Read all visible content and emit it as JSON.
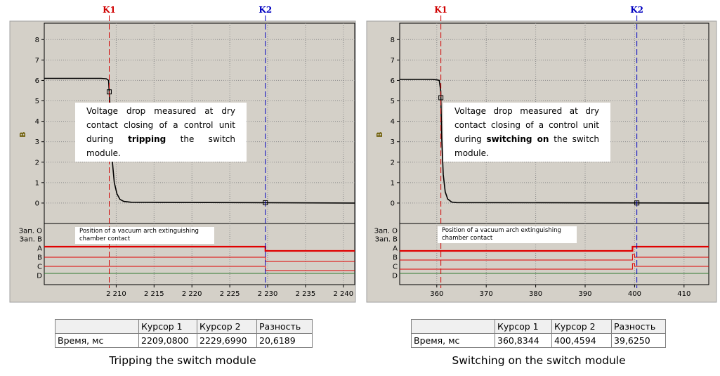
{
  "chart_data": [
    {
      "type": "line",
      "ylabel": "В",
      "xlim": [
        2200.5,
        2241.5
      ],
      "ylim": [
        -1,
        8.8
      ],
      "x_ticks": [
        2210,
        2215,
        2220,
        2225,
        2230,
        2235,
        2240
      ],
      "x_tick_labels": [
        "2 210",
        "2 215",
        "2 220",
        "2 225",
        "2 230",
        "2 235",
        "2 240"
      ],
      "y_ticks": [
        0,
        1,
        2,
        3,
        4,
        5,
        6,
        7,
        8
      ],
      "y_tick_labels": [
        "0",
        "1",
        "2",
        "3",
        "4",
        "5",
        "6",
        "7",
        "8"
      ],
      "series": [
        {
          "color": "#000000",
          "x": [
            2200.5,
            2207.5,
            2208.0,
            2208.7,
            2209.0,
            2209.2,
            2209.45,
            2209.75,
            2210.1,
            2210.5,
            2211.0,
            2212.0,
            2241.5
          ],
          "y": [
            6.1,
            6.1,
            6.1,
            6.08,
            6.0,
            4.6,
            2.2,
            1.0,
            0.45,
            0.18,
            0.08,
            0.04,
            0.0
          ]
        }
      ],
      "cursors": [
        {
          "name": "K1",
          "x": 2209.08,
          "color": "#d00000"
        },
        {
          "name": "K2",
          "x": 2229.7,
          "color": "#0000c0"
        }
      ],
      "digital_labels": [
        "Зап. О",
        "Зап. В",
        "A",
        "B",
        "C",
        "D"
      ],
      "digital_changes_at": 2229.7,
      "annotation": {
        "before": "Voltage drop measured at dry contact closing of a control unit during ",
        "bold": "tripping",
        "after": " the switch module."
      },
      "digital_annotation": "Position of a vacuum arch extinguishing chamber contact",
      "table": {
        "headers": [
          "",
          "Курсор 1",
          "Курсор 2",
          "Разность"
        ],
        "row": [
          "Время, мс",
          "2209,0800",
          "2229,6990",
          "20,6189"
        ]
      },
      "caption": "Tripping the switch module",
      "grid": true
    },
    {
      "type": "line",
      "ylabel": "В",
      "xlim": [
        352.5,
        415.0
      ],
      "ylim": [
        -1,
        8.8
      ],
      "x_ticks": [
        360,
        370,
        380,
        390,
        400,
        410
      ],
      "x_tick_labels": [
        "360",
        "370",
        "380",
        "390",
        "400",
        "410"
      ],
      "y_ticks": [
        0,
        1,
        2,
        3,
        4,
        5,
        6,
        7,
        8
      ],
      "y_tick_labels": [
        "0",
        "1",
        "2",
        "3",
        "4",
        "5",
        "6",
        "7",
        "8"
      ],
      "series": [
        {
          "color": "#000000",
          "x": [
            352.5,
            359.0,
            360.0,
            360.5,
            360.8,
            361.0,
            361.3,
            361.7,
            362.2,
            363.0,
            364.0,
            415.0
          ],
          "y": [
            6.05,
            6.05,
            6.03,
            6.0,
            5.5,
            3.2,
            1.4,
            0.55,
            0.2,
            0.05,
            0.02,
            0.0
          ]
        }
      ],
      "cursors": [
        {
          "name": "K1",
          "x": 360.83,
          "color": "#d00000"
        },
        {
          "name": "K2",
          "x": 400.46,
          "color": "#0000c0"
        }
      ],
      "digital_labels": [
        "Зап. О",
        "Зап. В",
        "A",
        "B",
        "C",
        "D"
      ],
      "digital_changes_at": 400.0,
      "annotation": {
        "before": "Voltage drop measured at dry contact closing of a control unit during ",
        "bold": "switching on",
        "after": " the switch module."
      },
      "digital_annotation": "Position of a vacuum arch extinguishing chamber contact",
      "table": {
        "headers": [
          "",
          "Курсор 1",
          "Курсор 2",
          "Разность"
        ],
        "row": [
          "Время, мс",
          "360,8344",
          "400,4594",
          "39,6250"
        ]
      },
      "caption": "Switching on the switch module",
      "grid": true
    }
  ]
}
